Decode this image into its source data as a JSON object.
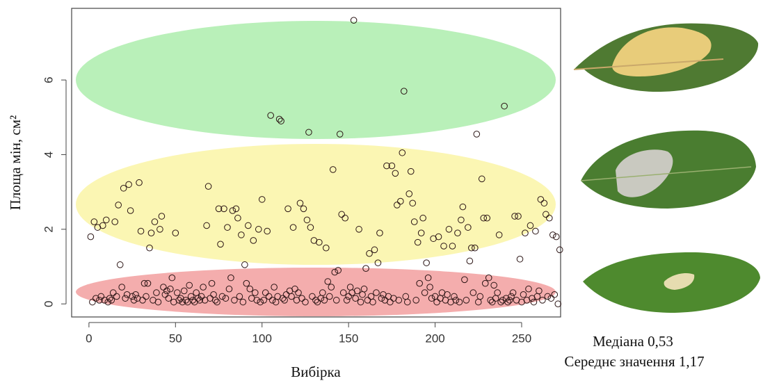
{
  "chart_data": {
    "type": "scatter",
    "xlabel": "Вибірка",
    "ylabel": "Площа мін, см²",
    "xlim": [
      -10,
      272.5
    ],
    "ylim": [
      -0.35,
      7.92
    ],
    "xticks": [
      0,
      50,
      100,
      150,
      200,
      250
    ],
    "yticks": [
      0,
      2,
      4,
      6
    ],
    "color": "#2a1414",
    "x": [
      1,
      2,
      3,
      4,
      5,
      6,
      7,
      8,
      9,
      10,
      11,
      12,
      13,
      14,
      15,
      16,
      17,
      18,
      19,
      20,
      21,
      22,
      23,
      24,
      25,
      26,
      27,
      28,
      29,
      30,
      31,
      32,
      33,
      34,
      35,
      36,
      37,
      38,
      39,
      40,
      41,
      42,
      43,
      44,
      45,
      46,
      47,
      48,
      49,
      50,
      51,
      52,
      53,
      54,
      55,
      56,
      57,
      58,
      59,
      60,
      61,
      62,
      63,
      64,
      65,
      66,
      67,
      68,
      69,
      70,
      71,
      72,
      73,
      74,
      75,
      76,
      77,
      78,
      79,
      80,
      81,
      82,
      83,
      84,
      85,
      86,
      87,
      88,
      89,
      90,
      91,
      92,
      93,
      94,
      95,
      96,
      97,
      98,
      99,
      100,
      101,
      102,
      103,
      104,
      105,
      106,
      107,
      108,
      109,
      110,
      111,
      112,
      113,
      114,
      115,
      116,
      117,
      118,
      119,
      120,
      121,
      122,
      123,
      124,
      125,
      126,
      127,
      128,
      129,
      130,
      131,
      132,
      133,
      134,
      135,
      136,
      137,
      138,
      139,
      140,
      141,
      142,
      143,
      144,
      145,
      146,
      147,
      148,
      149,
      150,
      151,
      152,
      153,
      154,
      155,
      156,
      157,
      158,
      159,
      160,
      161,
      162,
      163,
      164,
      165,
      166,
      167,
      168,
      169,
      170,
      171,
      172,
      173,
      174,
      175,
      176,
      177,
      178,
      179,
      180,
      181,
      182,
      183,
      184,
      185,
      186,
      187,
      188,
      189,
      190,
      191,
      192,
      193,
      194,
      195,
      196,
      197,
      198,
      199,
      200,
      201,
      202,
      203,
      204,
      205,
      206,
      207,
      208,
      209,
      210,
      211,
      212,
      213,
      214,
      215,
      216,
      217,
      218,
      219,
      220,
      221,
      222,
      223,
      224,
      225,
      226,
      227,
      228,
      229,
      230,
      231,
      232,
      233,
      234,
      235,
      236,
      237,
      238,
      239,
      240,
      241,
      242,
      243,
      244,
      245,
      246,
      247,
      248,
      249,
      250,
      251,
      252,
      253,
      254,
      255,
      256,
      257,
      258,
      259,
      260,
      261,
      262,
      263,
      264,
      265,
      266,
      267,
      268,
      269,
      270,
      271,
      272
    ],
    "values": [
      1.8,
      0.05,
      2.2,
      0.15,
      2.05,
      0.1,
      0.2,
      2.1,
      0.1,
      2.25,
      0.05,
      0.15,
      0.1,
      0.3,
      2.2,
      0.2,
      2.65,
      1.05,
      0.45,
      3.1,
      0.15,
      0.25,
      3.2,
      2.5,
      0.2,
      0.1,
      0.25,
      0.15,
      3.25,
      1.95,
      0.1,
      0.55,
      0.2,
      0.55,
      1.5,
      1.9,
      0.1,
      2.2,
      0.3,
      0.05,
      2.0,
      2.35,
      0.45,
      0.25,
      0.35,
      0.15,
      0.4,
      0.7,
      0.05,
      1.9,
      0.3,
      0.1,
      0.15,
      0.05,
      0.35,
      0.1,
      0.05,
      0.5,
      0.2,
      0.1,
      0.05,
      0.3,
      0.15,
      0.1,
      0.2,
      0.45,
      0.1,
      2.1,
      3.15,
      0.15,
      0.55,
      0.25,
      0.1,
      0.05,
      2.55,
      1.6,
      0.2,
      2.55,
      0.15,
      2.05,
      0.4,
      0.7,
      2.5,
      0.1,
      2.55,
      2.3,
      0.2,
      1.85,
      0.05,
      1.05,
      0.55,
      2.1,
      0.4,
      0.15,
      1.7,
      0.3,
      0.1,
      2.0,
      0.05,
      2.8,
      0.1,
      0.3,
      1.95,
      0.2,
      5.05,
      0.1,
      0.45,
      0.05,
      0.2,
      4.95,
      4.9,
      0.15,
      0.1,
      0.25,
      2.55,
      0.35,
      0.2,
      2.05,
      0.4,
      0.1,
      0.3,
      2.7,
      0.15,
      2.55,
      0.05,
      2.25,
      4.6,
      2.05,
      0.2,
      1.7,
      0.1,
      0.05,
      1.65,
      0.15,
      0.3,
      0.1,
      1.5,
      0.6,
      0.2,
      0.45,
      3.6,
      0.85,
      0.1,
      0.9,
      4.55,
      2.4,
      0.3,
      2.3,
      0.1,
      0.2,
      0.45,
      0.3,
      7.6,
      0.15,
      0.35,
      2.0,
      0.05,
      0.25,
      0.4,
      0.95,
      0.1,
      1.35,
      0.2,
      0.05,
      1.45,
      0.3,
      1.1,
      1.9,
      0.15,
      0.25,
      0.1,
      3.7,
      0.2,
      0.05,
      3.7,
      0.15,
      3.5,
      2.65,
      0.1,
      2.75,
      4.05,
      5.7,
      0.2,
      0.05,
      2.95,
      3.55,
      2.7,
      2.2,
      0.1,
      1.65,
      0.55,
      1.9,
      2.3,
      0.3,
      1.1,
      0.7,
      0.45,
      0.15,
      1.75,
      0.2,
      0.05,
      1.8,
      0.15,
      0.3,
      1.55,
      0.1,
      0.25,
      2.0,
      0.05,
      1.55,
      0.2,
      0.1,
      1.9,
      0.05,
      2.25,
      2.6,
      0.65,
      0.1,
      2.05,
      1.15,
      1.5,
      0.3,
      1.5,
      4.55,
      0.05,
      0.2,
      3.35,
      2.3,
      0.55,
      2.3,
      0.7,
      0.1,
      0.05,
      0.5,
      0.15,
      0.3,
      1.85,
      0.05,
      0.1,
      5.3,
      0.15,
      0.05,
      0.1,
      0.2,
      0.3,
      2.35,
      0.1,
      2.35,
      1.2,
      0.05,
      0.25,
      1.9,
      0.1,
      0.4,
      2.1,
      0.15,
      0.05,
      1.95,
      0.2,
      0.35,
      2.8,
      0.1,
      2.7,
      2.4,
      0.2,
      2.3,
      0.15,
      1.85,
      0.25,
      1.8,
      0.0,
      1.45
    ],
    "annotations": [
      "Медіана  0,53",
      "Середнє значення  1,17"
    ]
  }
}
